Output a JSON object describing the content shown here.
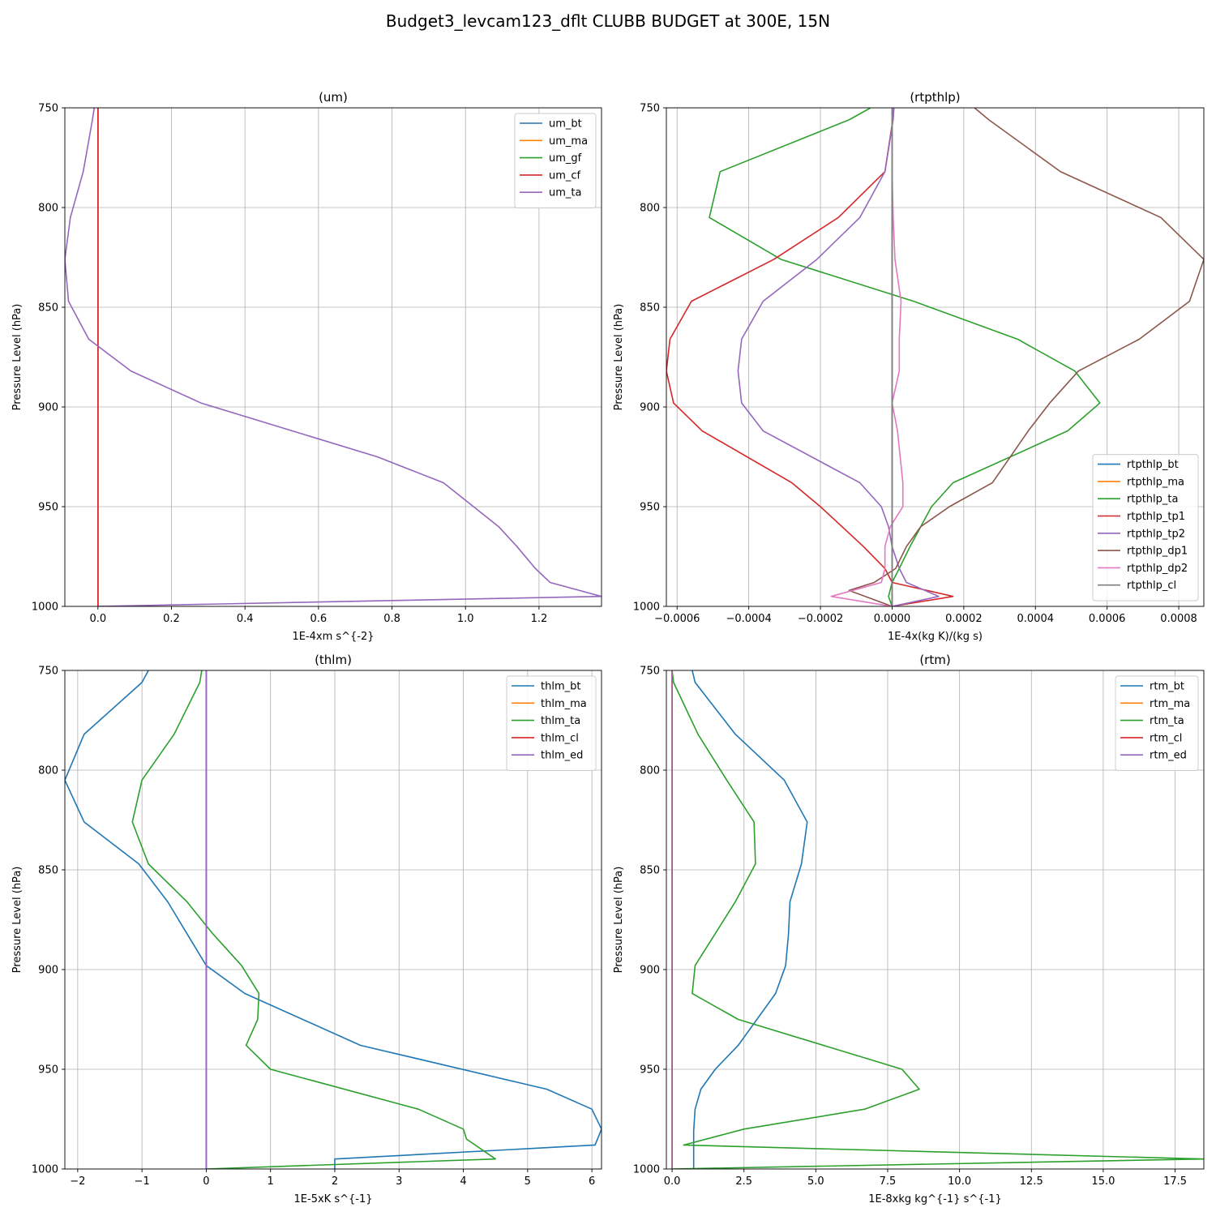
{
  "figure_title": "Budget3_levcam123_dflt CLUBB BUDGET at 300E, 15N",
  "colors": {
    "C0": "#1f77b4",
    "C1": "#ff7f0e",
    "C2": "#2ca02c",
    "C3": "#d62728",
    "C4": "#9467bd",
    "C5": "#8c564b",
    "C6": "#e377c2",
    "C7": "#7f7f7f"
  },
  "chart_data": [
    {
      "type": "line",
      "title": "(um)",
      "xlabel": "1E-4xm s^{-2}",
      "ylabel": "Pressure Level (hPa)",
      "xlim": [
        -0.09,
        1.37
      ],
      "ylim": [
        1000,
        750
      ],
      "xticks": [
        0.0,
        0.2,
        0.4,
        0.6,
        0.8,
        1.0,
        1.2
      ],
      "xtick_labels": [
        "0.0",
        "0.2",
        "0.4",
        "0.6",
        "0.8",
        "1.0",
        "1.2"
      ],
      "yticks": [
        750,
        800,
        850,
        900,
        950,
        1000
      ],
      "grid": true,
      "legend_position": "top-right",
      "series": [
        {
          "name": "um_bt",
          "color": "C0",
          "x": [
            0,
            0,
            0,
            0,
            0,
            0,
            0,
            0,
            0,
            0,
            0,
            0,
            0,
            0,
            0,
            0
          ],
          "y": [
            750,
            756,
            782,
            805,
            826,
            847,
            866,
            882,
            898,
            925,
            938,
            960,
            970,
            981,
            988,
            1000
          ]
        },
        {
          "name": "um_ma",
          "color": "C1",
          "x": [
            0,
            0,
            0,
            0,
            0,
            0,
            0,
            0,
            0,
            0,
            0,
            0,
            0,
            0,
            0,
            0
          ],
          "y": [
            750,
            756,
            782,
            805,
            826,
            847,
            866,
            882,
            898,
            925,
            938,
            960,
            970,
            981,
            988,
            1000
          ]
        },
        {
          "name": "um_gf",
          "color": "C2",
          "x": [
            0,
            0,
            0,
            0,
            0,
            0,
            0,
            0,
            0,
            0,
            0,
            0,
            0,
            0,
            0,
            0
          ],
          "y": [
            750,
            756,
            782,
            805,
            826,
            847,
            866,
            882,
            898,
            925,
            938,
            960,
            970,
            981,
            988,
            1000
          ]
        },
        {
          "name": "um_cf",
          "color": "C3",
          "x": [
            0,
            0,
            0,
            0,
            0,
            0,
            0,
            0,
            0,
            0,
            0,
            0,
            0,
            0,
            0,
            0
          ],
          "y": [
            750,
            756,
            782,
            805,
            826,
            847,
            866,
            882,
            898,
            925,
            938,
            960,
            970,
            981,
            988,
            1000
          ]
        },
        {
          "name": "um_ta",
          "color": "C4",
          "x": [
            -0.01,
            -0.015,
            -0.04,
            -0.075,
            -0.09,
            -0.08,
            -0.025,
            0.09,
            0.28,
            0.76,
            0.94,
            1.09,
            1.14,
            1.19,
            1.23,
            1.37,
            0.0
          ],
          "y": [
            750,
            756,
            782,
            805,
            826,
            847,
            866,
            882,
            898,
            925,
            938,
            960,
            970,
            981,
            988,
            995,
            1000
          ]
        }
      ]
    },
    {
      "type": "line",
      "title": "(rtpthlp)",
      "xlabel": "1E-4x(kg K)/(kg s)",
      "ylabel": "Pressure Level (hPa)",
      "xlim": [
        -0.00063,
        0.00087
      ],
      "ylim": [
        1000,
        750
      ],
      "xticks": [
        -0.0006,
        -0.0004,
        -0.0002,
        0.0,
        0.0002,
        0.0004,
        0.0006,
        0.0008
      ],
      "xtick_labels": [
        "−0.0006",
        "−0.0004",
        "−0.0002",
        "0.0000",
        "0.0002",
        "0.0004",
        "0.0006",
        "0.0008"
      ],
      "yticks": [
        750,
        800,
        850,
        900,
        950,
        1000
      ],
      "grid": true,
      "legend_position": "bottom-right",
      "series": [
        {
          "name": "rtpthlp_bt",
          "color": "C0",
          "x": [
            0,
            0,
            0,
            0,
            0,
            0,
            0,
            0,
            0,
            0,
            0,
            0,
            0,
            0,
            0,
            0
          ],
          "y": [
            750,
            756,
            782,
            805,
            826,
            847,
            866,
            882,
            898,
            912,
            938,
            950,
            960,
            970,
            981,
            1000
          ]
        },
        {
          "name": "rtpthlp_ma",
          "color": "C1",
          "x": [
            0,
            0,
            0,
            0,
            0,
            0,
            0,
            0,
            0,
            0,
            0,
            0,
            0,
            0,
            0,
            0
          ],
          "y": [
            750,
            756,
            782,
            805,
            826,
            847,
            866,
            882,
            898,
            912,
            938,
            950,
            960,
            970,
            981,
            1000
          ]
        },
        {
          "name": "rtpthlp_ta",
          "color": "C2",
          "x": [
            -6e-05,
            -0.00012,
            -0.00048,
            -0.00051,
            -0.00031,
            6e-05,
            0.00035,
            0.00051,
            0.00058,
            0.00049,
            0.00017,
            0.00011,
            8e-05,
            5e-05,
            2e-05,
            0.0,
            -1e-05,
            0.0
          ],
          "y": [
            750,
            756,
            782,
            805,
            826,
            847,
            866,
            882,
            898,
            912,
            938,
            950,
            960,
            970,
            981,
            988,
            995,
            1000
          ]
        },
        {
          "name": "rtpthlp_tp1",
          "color": "C3",
          "x": [
            5e-06,
            2e-06,
            -2e-05,
            -0.00015,
            -0.00033,
            -0.00056,
            -0.00062,
            -0.00063,
            -0.00061,
            -0.00053,
            -0.00028,
            -0.0002,
            -0.00014,
            -8e-05,
            -2e-05,
            0.0,
            0.00017,
            0.0
          ],
          "y": [
            750,
            756,
            782,
            805,
            826,
            847,
            866,
            882,
            898,
            912,
            938,
            950,
            960,
            970,
            981,
            988,
            995,
            1000
          ]
        },
        {
          "name": "rtpthlp_tp2",
          "color": "C4",
          "x": [
            5e-06,
            3e-06,
            -2e-05,
            -9e-05,
            -0.00021,
            -0.00036,
            -0.00042,
            -0.00043,
            -0.00042,
            -0.00036,
            -9e-05,
            -3e-05,
            -1e-05,
            0.0,
            2e-05,
            4e-05,
            0.00013,
            0.0
          ],
          "y": [
            750,
            756,
            782,
            805,
            826,
            847,
            866,
            882,
            898,
            912,
            938,
            950,
            960,
            970,
            981,
            988,
            995,
            1000
          ]
        },
        {
          "name": "rtpthlp_dp1",
          "color": "C5",
          "x": [
            0.00023,
            0.00027,
            0.00047,
            0.00075,
            0.00087,
            0.00083,
            0.00069,
            0.00052,
            0.00044,
            0.00038,
            0.00028,
            0.00016,
            8e-05,
            4e-05,
            1e-05,
            -5e-05,
            -0.00012,
            0.0
          ],
          "y": [
            750,
            756,
            782,
            805,
            826,
            847,
            866,
            882,
            898,
            912,
            938,
            950,
            960,
            970,
            981,
            988,
            992,
            1000
          ]
        },
        {
          "name": "rtpthlp_dp2",
          "color": "C6",
          "x": [
            0.0,
            0.0,
            0.0,
            3e-06,
            8e-06,
            2.5e-05,
            2e-05,
            2e-05,
            0.0,
            1.5e-05,
            3e-05,
            3e-05,
            -5e-06,
            -2e-05,
            -2e-05,
            -3e-05,
            -0.00017,
            0.0
          ],
          "y": [
            750,
            756,
            782,
            805,
            826,
            847,
            866,
            882,
            898,
            912,
            938,
            950,
            960,
            970,
            981,
            988,
            995,
            1000
          ]
        },
        {
          "name": "rtpthlp_cl",
          "color": "C7",
          "x": [
            0,
            0,
            0,
            0,
            0,
            0,
            0,
            0,
            0,
            0,
            0,
            0,
            0,
            0,
            0,
            0
          ],
          "y": [
            750,
            756,
            782,
            805,
            826,
            847,
            866,
            882,
            898,
            912,
            938,
            950,
            960,
            970,
            981,
            1000
          ]
        }
      ]
    },
    {
      "type": "line",
      "title": "(thlm)",
      "xlabel": "1E-5xK s^{-1}",
      "ylabel": "Pressure Level (hPa)",
      "xlim": [
        -2.2,
        6.15
      ],
      "ylim": [
        1000,
        750
      ],
      "xticks": [
        -2,
        -1,
        0,
        1,
        2,
        3,
        4,
        5,
        6
      ],
      "xtick_labels": [
        "−2",
        "−1",
        "0",
        "1",
        "2",
        "3",
        "4",
        "5",
        "6"
      ],
      "yticks": [
        750,
        800,
        850,
        900,
        950,
        1000
      ],
      "grid": true,
      "legend_position": "top-right",
      "series": [
        {
          "name": "thlm_bt",
          "color": "C0",
          "x": [
            -0.9,
            -1.0,
            -1.9,
            -2.2,
            -1.9,
            -1.05,
            -0.6,
            -0.3,
            0.0,
            0.6,
            2.4,
            5.3,
            6.0,
            6.15,
            6.05,
            2.0,
            2.0
          ],
          "y": [
            750,
            756,
            782,
            805,
            826,
            847,
            866,
            882,
            898,
            912,
            938,
            960,
            970,
            980,
            988,
            995,
            1000
          ]
        },
        {
          "name": "thlm_ma",
          "color": "C1",
          "x": [
            0,
            0,
            0,
            0,
            0,
            0,
            0,
            0,
            0,
            0,
            0,
            0,
            0,
            0,
            0,
            0,
            0
          ],
          "y": [
            750,
            756,
            782,
            805,
            826,
            847,
            866,
            882,
            898,
            912,
            938,
            960,
            970,
            980,
            988,
            995,
            1000
          ]
        },
        {
          "name": "thlm_ta",
          "color": "C2",
          "x": [
            -0.07,
            -0.1,
            -0.5,
            -1.0,
            -1.15,
            -0.9,
            -0.3,
            0.1,
            0.55,
            0.82,
            0.8,
            0.62,
            1.0,
            3.3,
            4.0,
            4.05,
            4.5,
            0.0
          ],
          "y": [
            750,
            756,
            782,
            805,
            826,
            847,
            866,
            882,
            898,
            912,
            925,
            938,
            950,
            970,
            980,
            985,
            995,
            1000
          ]
        },
        {
          "name": "thlm_cl",
          "color": "C3",
          "x": [
            0,
            0,
            0,
            0,
            0,
            0,
            0,
            0,
            0,
            0,
            0,
            0,
            0,
            0,
            0,
            0,
            0
          ],
          "y": [
            750,
            756,
            782,
            805,
            826,
            847,
            866,
            882,
            898,
            912,
            938,
            960,
            970,
            980,
            988,
            995,
            1000
          ]
        },
        {
          "name": "thlm_ed",
          "color": "C4",
          "x": [
            0,
            0,
            0,
            0,
            0,
            0,
            0,
            0,
            0,
            0,
            0,
            0,
            0,
            0,
            0,
            0,
            0
          ],
          "y": [
            750,
            756,
            782,
            805,
            826,
            847,
            866,
            882,
            898,
            912,
            938,
            960,
            970,
            980,
            988,
            995,
            1000
          ]
        }
      ]
    },
    {
      "type": "line",
      "title": "(rtm)",
      "xlabel": "1E-8xkg kg^{-1} s^{-1}",
      "ylabel": "Pressure Level (hPa)",
      "xlim": [
        -0.2,
        18.5
      ],
      "ylim": [
        1000,
        750
      ],
      "xticks": [
        0.0,
        2.5,
        5.0,
        7.5,
        10.0,
        12.5,
        15.0,
        17.5
      ],
      "xtick_labels": [
        "0.0",
        "2.5",
        "5.0",
        "7.5",
        "10.0",
        "12.5",
        "15.0",
        "17.5"
      ],
      "yticks": [
        750,
        800,
        850,
        900,
        950,
        1000
      ],
      "grid": true,
      "legend_position": "top-right",
      "series": [
        {
          "name": "rtm_bt",
          "color": "C0",
          "x": [
            0.7,
            0.8,
            2.2,
            3.9,
            4.7,
            4.5,
            4.1,
            4.05,
            3.95,
            3.6,
            2.3,
            1.5,
            1.0,
            0.8,
            0.75,
            0.75,
            0.75
          ],
          "y": [
            750,
            756,
            782,
            805,
            826,
            847,
            866,
            882,
            898,
            912,
            938,
            950,
            960,
            970,
            981,
            988,
            1000
          ]
        },
        {
          "name": "rtm_ma",
          "color": "C1",
          "x": [
            0,
            0,
            0,
            0,
            0,
            0,
            0,
            0,
            0,
            0,
            0,
            0,
            0,
            0,
            0,
            0,
            0
          ],
          "y": [
            750,
            756,
            782,
            805,
            826,
            847,
            866,
            882,
            898,
            912,
            938,
            950,
            960,
            970,
            981,
            988,
            1000
          ]
        },
        {
          "name": "rtm_ta",
          "color": "C2",
          "x": [
            0.0,
            0.05,
            0.9,
            1.9,
            2.85,
            2.9,
            2.2,
            1.5,
            0.8,
            0.7,
            2.3,
            8.0,
            8.6,
            6.7,
            2.5,
            0.4,
            18.5,
            0.0
          ],
          "y": [
            750,
            756,
            782,
            805,
            826,
            847,
            866,
            882,
            898,
            912,
            925,
            950,
            960,
            970,
            980,
            988,
            995,
            1000
          ]
        },
        {
          "name": "rtm_cl",
          "color": "C3",
          "x": [
            0,
            0,
            0,
            0,
            0,
            0,
            0,
            0,
            0,
            0,
            0,
            0,
            0,
            0,
            0,
            0,
            0
          ],
          "y": [
            750,
            756,
            782,
            805,
            826,
            847,
            866,
            882,
            898,
            912,
            938,
            950,
            960,
            970,
            981,
            988,
            1000
          ]
        },
        {
          "name": "rtm_ed",
          "color": "C4",
          "x": [
            0,
            0,
            0,
            0,
            0,
            0,
            0,
            0,
            0,
            0,
            0,
            0,
            0,
            0,
            0,
            0,
            0
          ],
          "y": [
            750,
            756,
            782,
            805,
            826,
            847,
            866,
            882,
            898,
            912,
            938,
            950,
            960,
            970,
            981,
            988,
            1000
          ]
        }
      ]
    }
  ]
}
